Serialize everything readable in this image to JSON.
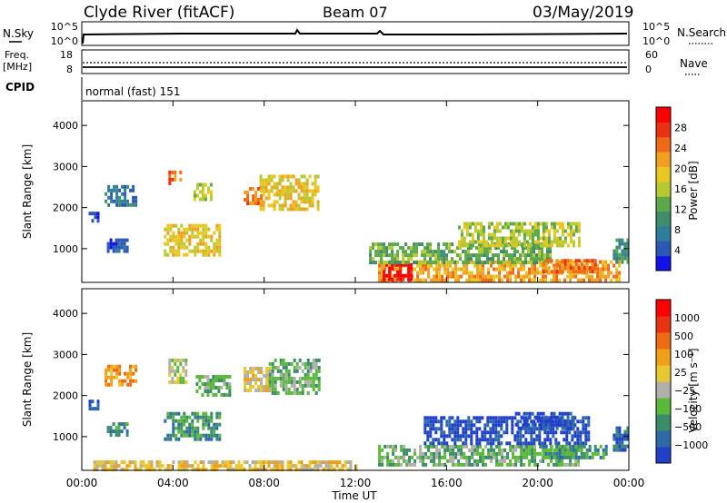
{
  "header": {
    "station": "Clyde River (fitACF)",
    "beam": "Beam 07",
    "date": "03/May/2019"
  },
  "strip_labels": {
    "nsky": "N.Sky",
    "nsearch": "N.Search",
    "nsky_ticks": [
      "10^5",
      "10^0"
    ],
    "nsearch_ticks": [
      "10^5",
      "10^0"
    ],
    "freq": "Freq.",
    "mhz": "[MHz]",
    "freq_ticks": [
      "18",
      "8"
    ],
    "nave": "Nave",
    "nave_ticks": [
      "60",
      "0"
    ],
    "cpid": "CPID",
    "cpid_text": "normal (fast) 151"
  },
  "chart_data": [
    {
      "type": "heatmap",
      "name": "Power",
      "ylabel": "Slant Range [km]",
      "xlabel": "Time UT",
      "x_ticks": [
        "00:00",
        "04:00",
        "08:00",
        "12:00",
        "16:00",
        "20:00",
        "00:00"
      ],
      "y_ticks": [
        1000,
        2000,
        3000,
        4000
      ],
      "xlim": [
        0,
        24
      ],
      "ylim": [
        180,
        4600
      ],
      "colorbar": {
        "label": "Power [dB]",
        "ticks": [
          4,
          8,
          12,
          16,
          20,
          24,
          28
        ],
        "colors": [
          "#1111e8",
          "#2a58b4",
          "#2f7d9c",
          "#3e8e6e",
          "#5aa84a",
          "#b8c830",
          "#e8c820",
          "#f0a020",
          "#ef6a18",
          "#e83212",
          "#ff0000"
        ]
      },
      "regions": [
        {
          "t0": 0.3,
          "t1": 0.7,
          "r0": 1650,
          "r1": 1900,
          "level": 1
        },
        {
          "t0": 1.0,
          "t1": 2.4,
          "r0": 2050,
          "r1": 2550,
          "level": 2
        },
        {
          "t0": 1.1,
          "t1": 2.0,
          "r0": 900,
          "r1": 1250,
          "level": 1
        },
        {
          "t0": 3.6,
          "t1": 6.0,
          "r0": 850,
          "r1": 1600,
          "level": 6
        },
        {
          "t0": 3.8,
          "t1": 4.3,
          "r0": 2550,
          "r1": 2900,
          "level": 8
        },
        {
          "t0": 4.9,
          "t1": 5.7,
          "r0": 2200,
          "r1": 2600,
          "level": 5
        },
        {
          "t0": 7.1,
          "t1": 7.9,
          "r0": 2100,
          "r1": 2500,
          "level": 8
        },
        {
          "t0": 7.8,
          "t1": 10.4,
          "r0": 2000,
          "r1": 2800,
          "level": 6
        },
        {
          "t0": 13.0,
          "t1": 23.6,
          "r0": 220,
          "r1": 720,
          "level": 7
        },
        {
          "t0": 13.2,
          "t1": 14.4,
          "r0": 260,
          "r1": 650,
          "level": 10
        },
        {
          "t0": 12.6,
          "t1": 20.5,
          "r0": 700,
          "r1": 1150,
          "level": 4
        },
        {
          "t0": 16.5,
          "t1": 21.8,
          "r0": 1100,
          "r1": 1650,
          "level": 5
        },
        {
          "t0": 20.2,
          "t1": 22.5,
          "r0": 420,
          "r1": 750,
          "level": 8
        },
        {
          "t0": 23.3,
          "t1": 24.0,
          "r0": 700,
          "r1": 1250,
          "level": 3
        }
      ]
    },
    {
      "type": "heatmap",
      "name": "Velocity",
      "ylabel": "Slant Range [km]",
      "xlabel": "Time UT",
      "x_ticks": [
        "00:00",
        "04:00",
        "08:00",
        "12:00",
        "16:00",
        "20:00",
        "00:00"
      ],
      "y_ticks": [
        1000,
        2000,
        3000,
        4000
      ],
      "xlim": [
        0,
        24
      ],
      "ylim": [
        180,
        4600
      ],
      "colorbar": {
        "label": "Velocity [m s⁻¹]",
        "ticks": [
          "1000",
          "500",
          "100",
          "25",
          "−25",
          "−100",
          "−500",
          "−1000"
        ],
        "colors": [
          "#2040c8",
          "#2e6aa8",
          "#3a8c6a",
          "#5ab83a",
          "#b0b0a8",
          "#e8c830",
          "#f0a018",
          "#ef6a10",
          "#e83210",
          "#ff0000"
        ]
      },
      "regions": [
        {
          "t0": 0.3,
          "t1": 0.7,
          "r0": 1650,
          "r1": 1900,
          "level": 1
        },
        {
          "t0": 1.0,
          "t1": 2.4,
          "r0": 2300,
          "r1": 2750,
          "level": 6
        },
        {
          "t0": 1.1,
          "t1": 2.0,
          "r0": 1000,
          "r1": 1350,
          "level": 2
        },
        {
          "t0": 3.6,
          "t1": 6.0,
          "r0": 900,
          "r1": 1600,
          "level": 2
        },
        {
          "t0": 3.8,
          "t1": 4.6,
          "r0": 2300,
          "r1": 2900,
          "level": 4
        },
        {
          "t0": 5.0,
          "t1": 6.5,
          "r0": 2000,
          "r1": 2500,
          "level": 3
        },
        {
          "t0": 7.1,
          "t1": 8.2,
          "r0": 2100,
          "r1": 2700,
          "level": 5
        },
        {
          "t0": 8.2,
          "t1": 10.4,
          "r0": 2100,
          "r1": 2900,
          "level": 3
        },
        {
          "t0": 13.0,
          "t1": 21.8,
          "r0": 300,
          "r1": 800,
          "level": 3
        },
        {
          "t0": 15.0,
          "t1": 22.2,
          "r0": 850,
          "r1": 1500,
          "level": 0
        },
        {
          "t0": 19.0,
          "t1": 21.6,
          "r0": 1200,
          "r1": 1600,
          "level": 0
        },
        {
          "t0": 20.2,
          "t1": 23.0,
          "r0": 500,
          "r1": 800,
          "level": 2
        },
        {
          "t0": 0.5,
          "t1": 12.0,
          "r0": 200,
          "r1": 420,
          "level": 5
        },
        {
          "t0": 23.3,
          "t1": 24.0,
          "r0": 700,
          "r1": 1250,
          "level": 1
        }
      ]
    }
  ]
}
